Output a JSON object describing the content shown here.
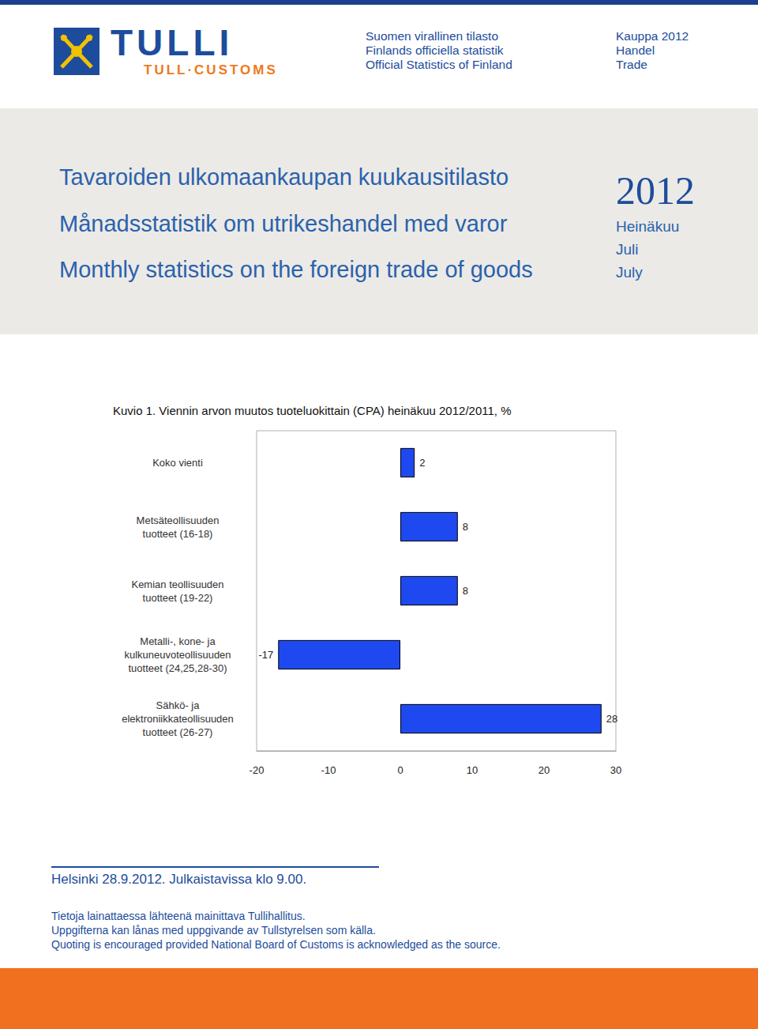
{
  "logo": {
    "name": "TULLI",
    "subtitle": "TULL·CUSTOMS"
  },
  "header": {
    "series_lines": [
      "Suomen virallinen tilasto",
      "Finlands officiella statistik",
      "Official Statistics of Finland"
    ],
    "topic_lines": [
      "Kauppa 2012",
      "Handel",
      "Trade"
    ]
  },
  "banner": {
    "titles": [
      "Tavaroiden ulkomaankaupan kuukausitilasto",
      "Månadsstatistik om utrikeshandel med varor",
      "Monthly statistics on the foreign trade of goods"
    ],
    "year": "2012",
    "month_lines": [
      "Heinäkuu",
      "Juli",
      "July"
    ]
  },
  "chart_data": {
    "type": "bar",
    "orientation": "horizontal",
    "title": "Kuvio 1. Viennin arvon muutos tuoteluokittain (CPA) heinäkuu 2012/2011, %",
    "categories": [
      "Koko vienti",
      "Metsäteollisuuden\ntuotteet (16-18)",
      "Kemian teollisuuden\ntuotteet (19-22)",
      "Metalli-, kone- ja\nkulkuneuvoteollisuuden\ntuotteet (24,25,28-30)",
      "Sähkö- ja\nelektroniikkateollisuuden\ntuotteet (26-27)"
    ],
    "values": [
      2,
      8,
      8,
      -17,
      28
    ],
    "color": "#1f49f0",
    "xlim": [
      -20,
      30
    ],
    "xticks": [
      -20,
      -10,
      0,
      10,
      20,
      30
    ],
    "grid": false,
    "data_labels": true
  },
  "footer": {
    "release": "Helsinki 28.9.2012. Julkaistavissa klo 9.00.",
    "notes": [
      "Tietoja lainattaessa lähteenä mainittava Tullihallitus.",
      "Uppgifterna kan lånas med uppgivande av Tullstyrelsen som källa.",
      "Quoting is encouraged provided National Board of Customs is acknowledged as the source."
    ]
  }
}
